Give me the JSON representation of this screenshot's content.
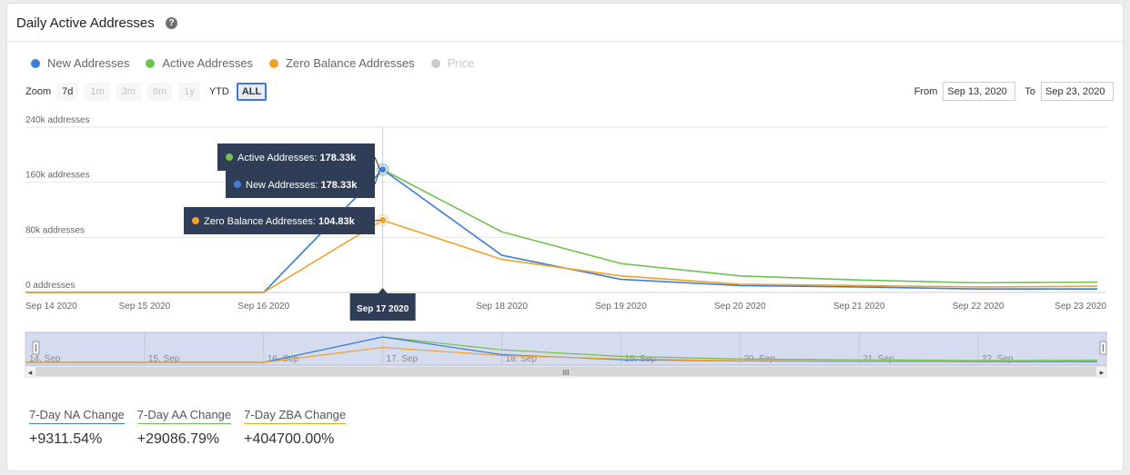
{
  "header": {
    "title": "Daily Active Addresses",
    "help_icon": "question-circle-icon",
    "help_glyph": "?"
  },
  "legend": [
    {
      "name": "New Addresses",
      "color": "#3d7ed8",
      "visible": true
    },
    {
      "name": "Active Addresses",
      "color": "#72c14f",
      "visible": true
    },
    {
      "name": "Zero Balance Addresses",
      "color": "#f0a12a",
      "visible": true
    },
    {
      "name": "Price",
      "color": "#cccccc",
      "visible": false
    }
  ],
  "zoom": {
    "label": "Zoom",
    "buttons": [
      {
        "label": "7d",
        "state": "normal"
      },
      {
        "label": "1m",
        "state": "disabled"
      },
      {
        "label": "3m",
        "state": "disabled"
      },
      {
        "label": "6m",
        "state": "disabled"
      },
      {
        "label": "1y",
        "state": "disabled"
      },
      {
        "label": "YTD",
        "state": "plain"
      },
      {
        "label": "ALL",
        "state": "active"
      }
    ]
  },
  "range": {
    "from_label": "From",
    "from_value": "Sep 13, 2020",
    "to_label": "To",
    "to_value": "Sep 23, 2020"
  },
  "chart_data": {
    "type": "line",
    "x": [
      "Sep 14 2020",
      "Sep 15 2020",
      "Sep 16 2020",
      "Sep 17 2020",
      "Sep 18 2020",
      "Sep 19 2020",
      "Sep 20 2020",
      "Sep 21 2020",
      "Sep 22 2020",
      "Sep 23 2020"
    ],
    "x_dates": [
      "2020-09-14",
      "2020-09-15",
      "2020-09-16",
      "2020-09-17",
      "2020-09-18",
      "2020-09-19",
      "2020-09-20",
      "2020-09-21",
      "2020-09-22",
      "2020-09-23"
    ],
    "series": [
      {
        "name": "Active Addresses",
        "color": "#72c14f",
        "values": [
          0,
          0,
          0,
          178330,
          88000,
          42000,
          24000,
          18000,
          14000,
          15000
        ]
      },
      {
        "name": "New Addresses",
        "color": "#3d7ed8",
        "values": [
          0,
          0,
          0,
          178330,
          54000,
          19000,
          10000,
          8000,
          5000,
          5000
        ]
      },
      {
        "name": "Zero Balance Addresses",
        "color": "#f0a12a",
        "values": [
          0,
          0,
          0,
          104830,
          48000,
          24000,
          12000,
          10000,
          8000,
          9000
        ]
      }
    ],
    "y_ticks": [
      {
        "value": 0,
        "label": "0 addresses"
      },
      {
        "value": 80000,
        "label": "80k addresses"
      },
      {
        "value": 160000,
        "label": "160k addresses"
      },
      {
        "value": 240000,
        "label": "240k addresses"
      }
    ],
    "ylim": [
      0,
      240000
    ],
    "grid": true,
    "legend_position": "top-left",
    "highlight_index": 3,
    "highlight_date_label": "Sep 17 2020",
    "tooltips": [
      {
        "series": "Active Addresses",
        "label": "Active Addresses: ",
        "value": "178.33k",
        "color": "#72c14f"
      },
      {
        "series": "New Addresses",
        "label": "New Addresses: ",
        "value": "178.33k",
        "color": "#3d7ed8"
      },
      {
        "series": "Zero Balance Addresses",
        "label": "Zero Balance Addresses: ",
        "value": "104.83k",
        "color": "#f0a12a"
      }
    ],
    "navigator": {
      "tick_labels": [
        "14. Sep",
        "15. Sep",
        "16. Sep",
        "17. Sep",
        "18. Sep",
        "19. Sep",
        "20. Sep",
        "21. Sep",
        "22. Sep"
      ],
      "grip_glyph": "III",
      "left_arrow": "◂",
      "right_arrow": "▸"
    }
  },
  "stats": [
    {
      "label": "7-Day NA Change",
      "value": "+9311.54%",
      "color": "#3d7ed8"
    },
    {
      "label": "7-Day AA Change",
      "value": "+29086.79%",
      "color": "#72c14f"
    },
    {
      "label": "7-Day ZBA Change",
      "value": "+404700.00%",
      "color": "#f0a12a"
    }
  ]
}
